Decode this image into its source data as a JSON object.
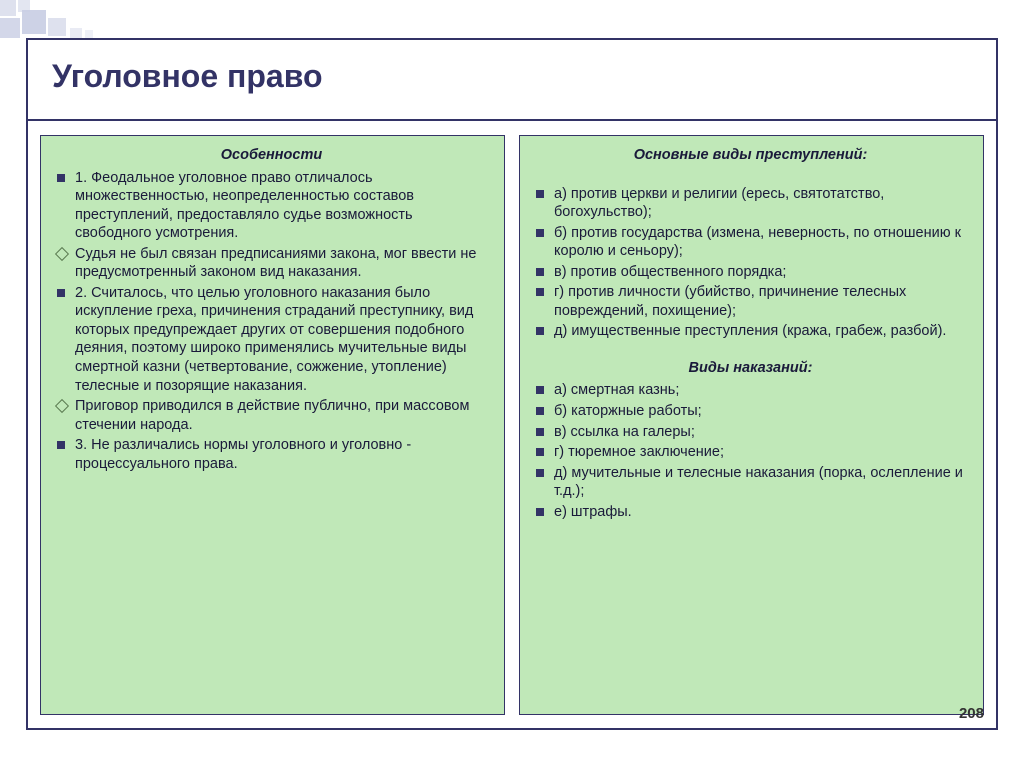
{
  "title": "Уголовное право",
  "pageNumber": "208",
  "left": {
    "heading": "Особенности",
    "items": [
      {
        "type": "square",
        "text": "1. Феодальное уголовное право отличалось множественностью, неопределенностью составов преступлений, предоставляло судье возможность свободного усмотрения."
      },
      {
        "type": "diamond",
        "text": "Судья не был связан предписаниями закона, мог ввести не предусмотренный законом вид наказания."
      },
      {
        "type": "square",
        "text": "2. Считалось, что целью уголовного наказания было искупление греха, причинения страданий преступнику, вид которых предупреждает других от совершения подобного деяния, поэтому широко применялись мучительные виды смертной казни (четвертование, сожжение, утопление) телесные и позорящие наказания."
      },
      {
        "type": "diamond",
        "text": "Приговор приводился в действие публично, при массовом стечении народа."
      },
      {
        "type": "square",
        "text": "3. Не различались нормы уголовного и уголовно - процессуального права."
      }
    ]
  },
  "right": {
    "heading1": "Основные виды преступлений",
    "crimes": [
      {
        "type": "square",
        "text": "а) против церкви и религии (ересь, святотатство, богохульство);"
      },
      {
        "type": "square",
        "text": "б) против государства (измена, неверность, по отношению к королю и сеньору);"
      },
      {
        "type": "square",
        "text": "в) против общественного порядка;"
      },
      {
        "type": "square",
        "text": "г) против личности (убийство, причинение телесных повреждений, похищение);"
      },
      {
        "type": "square",
        "text": "д) имущественные преступления (кража, грабеж, разбой)."
      }
    ],
    "heading2": "Виды наказаний",
    "punishments": [
      {
        "type": "square",
        "text": "а) смертная казнь;"
      },
      {
        "type": "square",
        "text": "б) каторжные работы;"
      },
      {
        "type": "square",
        "text": "в) ссылка на галеры;"
      },
      {
        "type": "square",
        "text": "г) тюремное заключение;"
      },
      {
        "type": "square",
        "text": "д) мучительные и телесные наказания (порка, ослепление и т.д.);"
      },
      {
        "type": "square",
        "text": "е) штрафы."
      }
    ]
  },
  "colors": {
    "border": "#333366",
    "panel_bg": "#c0e8b8",
    "deco": "#c8cde3",
    "title": "#333366"
  }
}
